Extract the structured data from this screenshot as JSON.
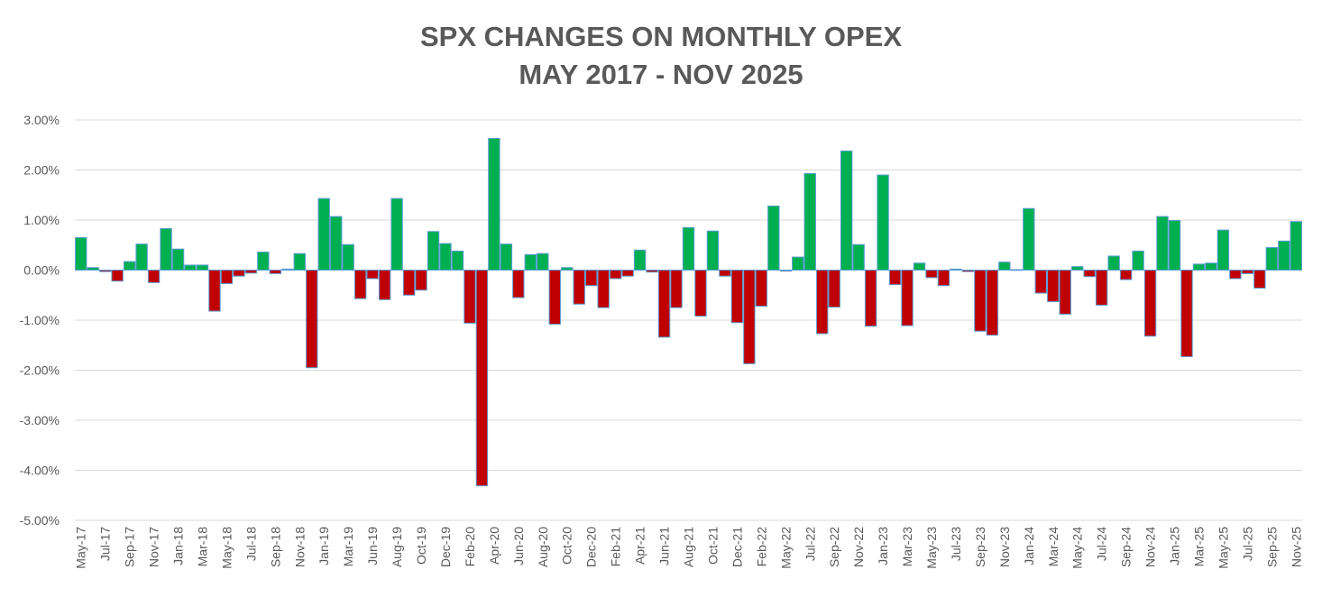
{
  "chart_data": {
    "type": "bar",
    "title_line1": "SPX CHANGES ON MONTHLY OPEX",
    "title_line2": "MAY 2017 - NOV 2025",
    "xlabel": "",
    "ylabel": "",
    "ylim": [
      -5,
      3
    ],
    "y_ticks": [
      3,
      2,
      1,
      0,
      -1,
      -2,
      -3,
      -4,
      -5
    ],
    "y_tick_labels": [
      "3.00%",
      "2.00%",
      "1.00%",
      "0.00%",
      "-1.00%",
      "-2.00%",
      "-3.00%",
      "-4.00%",
      "-5.00%"
    ],
    "gridlines": true,
    "legend": "none",
    "colors": {
      "positive": "#00B050",
      "negative": "#C00000",
      "border": "#5B9BD5",
      "grid": "#D9D9D9",
      "text": "#595959"
    },
    "categories": [
      "May-17",
      "Jun-17",
      "Jul-17",
      "Aug-17",
      "Sep-17",
      "Oct-17",
      "Nov-17",
      "Dec-17",
      "Jan-18",
      "Feb-18",
      "Mar-18",
      "Apr-18",
      "May-18",
      "Jun-18",
      "Jul-18",
      "Aug-18",
      "Sep-18",
      "Oct-18",
      "Nov-18",
      "Dec-18",
      "Jan-19",
      "Feb-19",
      "Mar-19",
      "Apr-19",
      "Jun-19",
      "Jul-19",
      "Aug-19",
      "Sep-19",
      "Oct-19",
      "Nov-19",
      "Dec-19",
      "Jan-20",
      "Feb-20",
      "Mar-20",
      "Apr-20",
      "May-20",
      "Jun-20",
      "Jul-20",
      "Aug-20",
      "Sep-20",
      "Oct-20",
      "Nov-20",
      "Dec-20",
      "Jan-21",
      "Feb-21",
      "Mar-21",
      "Apr-21",
      "May-21",
      "Jun-21",
      "Jul-21",
      "Aug-21",
      "Sep-21",
      "Oct-21",
      "Nov-21",
      "Dec-21",
      "Jan-22",
      "Feb-22",
      "Apr-22",
      "May-22",
      "Jun-22",
      "Jul-22",
      "Aug-22",
      "Sep-22",
      "Oct-22",
      "Nov-22",
      "Dec-22",
      "Jan-23",
      "Feb-23",
      "Mar-23",
      "Apr-23",
      "May-23",
      "Jun-23",
      "Jul-23",
      "Aug-23",
      "Sep-23",
      "Oct-23",
      "Nov-23",
      "Dec-23",
      "Jan-24",
      "Feb-24",
      "Mar-24",
      "Apr-24",
      "May-24",
      "Jun-24",
      "Jul-24",
      "Aug-24",
      "Sep-24",
      "Oct-24",
      "Nov-24",
      "Dec-24",
      "Jan-25",
      "Feb-25",
      "Mar-25",
      "Apr-25",
      "May-25",
      "Jun-25",
      "Jul-25",
      "Aug-25",
      "Sep-25",
      "Oct-25",
      "Nov-25"
    ],
    "tick_labels": [
      "May-17",
      "",
      "Jul-17",
      "",
      "Sep-17",
      "",
      "Nov-17",
      "",
      "Jan-18",
      "",
      "Mar-18",
      "",
      "May-18",
      "",
      "Jul-18",
      "",
      "Sep-18",
      "",
      "Nov-18",
      "",
      "Jan-19",
      "",
      "Mar-19",
      "",
      "Jun-19",
      "",
      "Aug-19",
      "",
      "Oct-19",
      "",
      "Dec-19",
      "",
      "Feb-20",
      "",
      "Apr-20",
      "",
      "Jun-20",
      "",
      "Aug-20",
      "",
      "Oct-20",
      "",
      "Dec-20",
      "",
      "Feb-21",
      "",
      "Apr-21",
      "",
      "Jun-21",
      "",
      "Aug-21",
      "",
      "Oct-21",
      "",
      "Dec-21",
      "",
      "Feb-22",
      "",
      "May-22",
      "",
      "Jul-22",
      "",
      "Sep-22",
      "",
      "Nov-22",
      "",
      "Jan-23",
      "",
      "Mar-23",
      "",
      "May-23",
      "",
      "Jul-23",
      "",
      "Sep-23",
      "",
      "Nov-23",
      "",
      "Jan-24",
      "",
      "Mar-24",
      "",
      "May-24",
      "",
      "Jul-24",
      "",
      "Sep-24",
      "",
      "Nov-24",
      "",
      "Jan-25",
      "",
      "Mar-25",
      "",
      "May-25",
      "",
      "Jul-25",
      "",
      "Sep-25",
      "",
      "Nov-25"
    ],
    "series": [
      {
        "name": "SPX change on monthly OPEX (%)",
        "values": [
          0.65,
          0.05,
          -0.03,
          -0.22,
          0.17,
          0.52,
          -0.25,
          0.83,
          0.42,
          0.1,
          0.1,
          -0.82,
          -0.27,
          -0.12,
          -0.06,
          0.36,
          -0.07,
          0.02,
          0.33,
          -1.95,
          1.43,
          1.07,
          0.51,
          -0.57,
          -0.17,
          -0.59,
          1.43,
          -0.5,
          -0.4,
          0.77,
          0.53,
          0.38,
          -1.06,
          -4.31,
          2.63,
          0.52,
          -0.55,
          0.31,
          0.33,
          -1.08,
          0.05,
          -0.68,
          -0.31,
          -0.75,
          -0.17,
          -0.12,
          0.4,
          -0.04,
          -1.34,
          -0.75,
          0.85,
          -0.92,
          0.78,
          -0.12,
          -1.05,
          -1.87,
          -0.72,
          1.28,
          -0.02,
          0.26,
          1.93,
          -1.27,
          -0.74,
          2.38,
          0.51,
          -1.12,
          1.9,
          -0.29,
          -1.11,
          0.14,
          -0.15,
          -0.31,
          0.02,
          -0.03,
          -1.22,
          -1.3,
          0.16,
          0.01,
          1.23,
          -0.46,
          -0.63,
          -0.88,
          0.07,
          -0.13,
          -0.7,
          0.28,
          -0.19,
          0.38,
          -1.32,
          1.07,
          0.99,
          -1.73,
          0.12,
          0.14,
          0.8,
          -0.17,
          -0.07,
          -0.36,
          0.45,
          0.58,
          0.97
        ]
      }
    ]
  }
}
